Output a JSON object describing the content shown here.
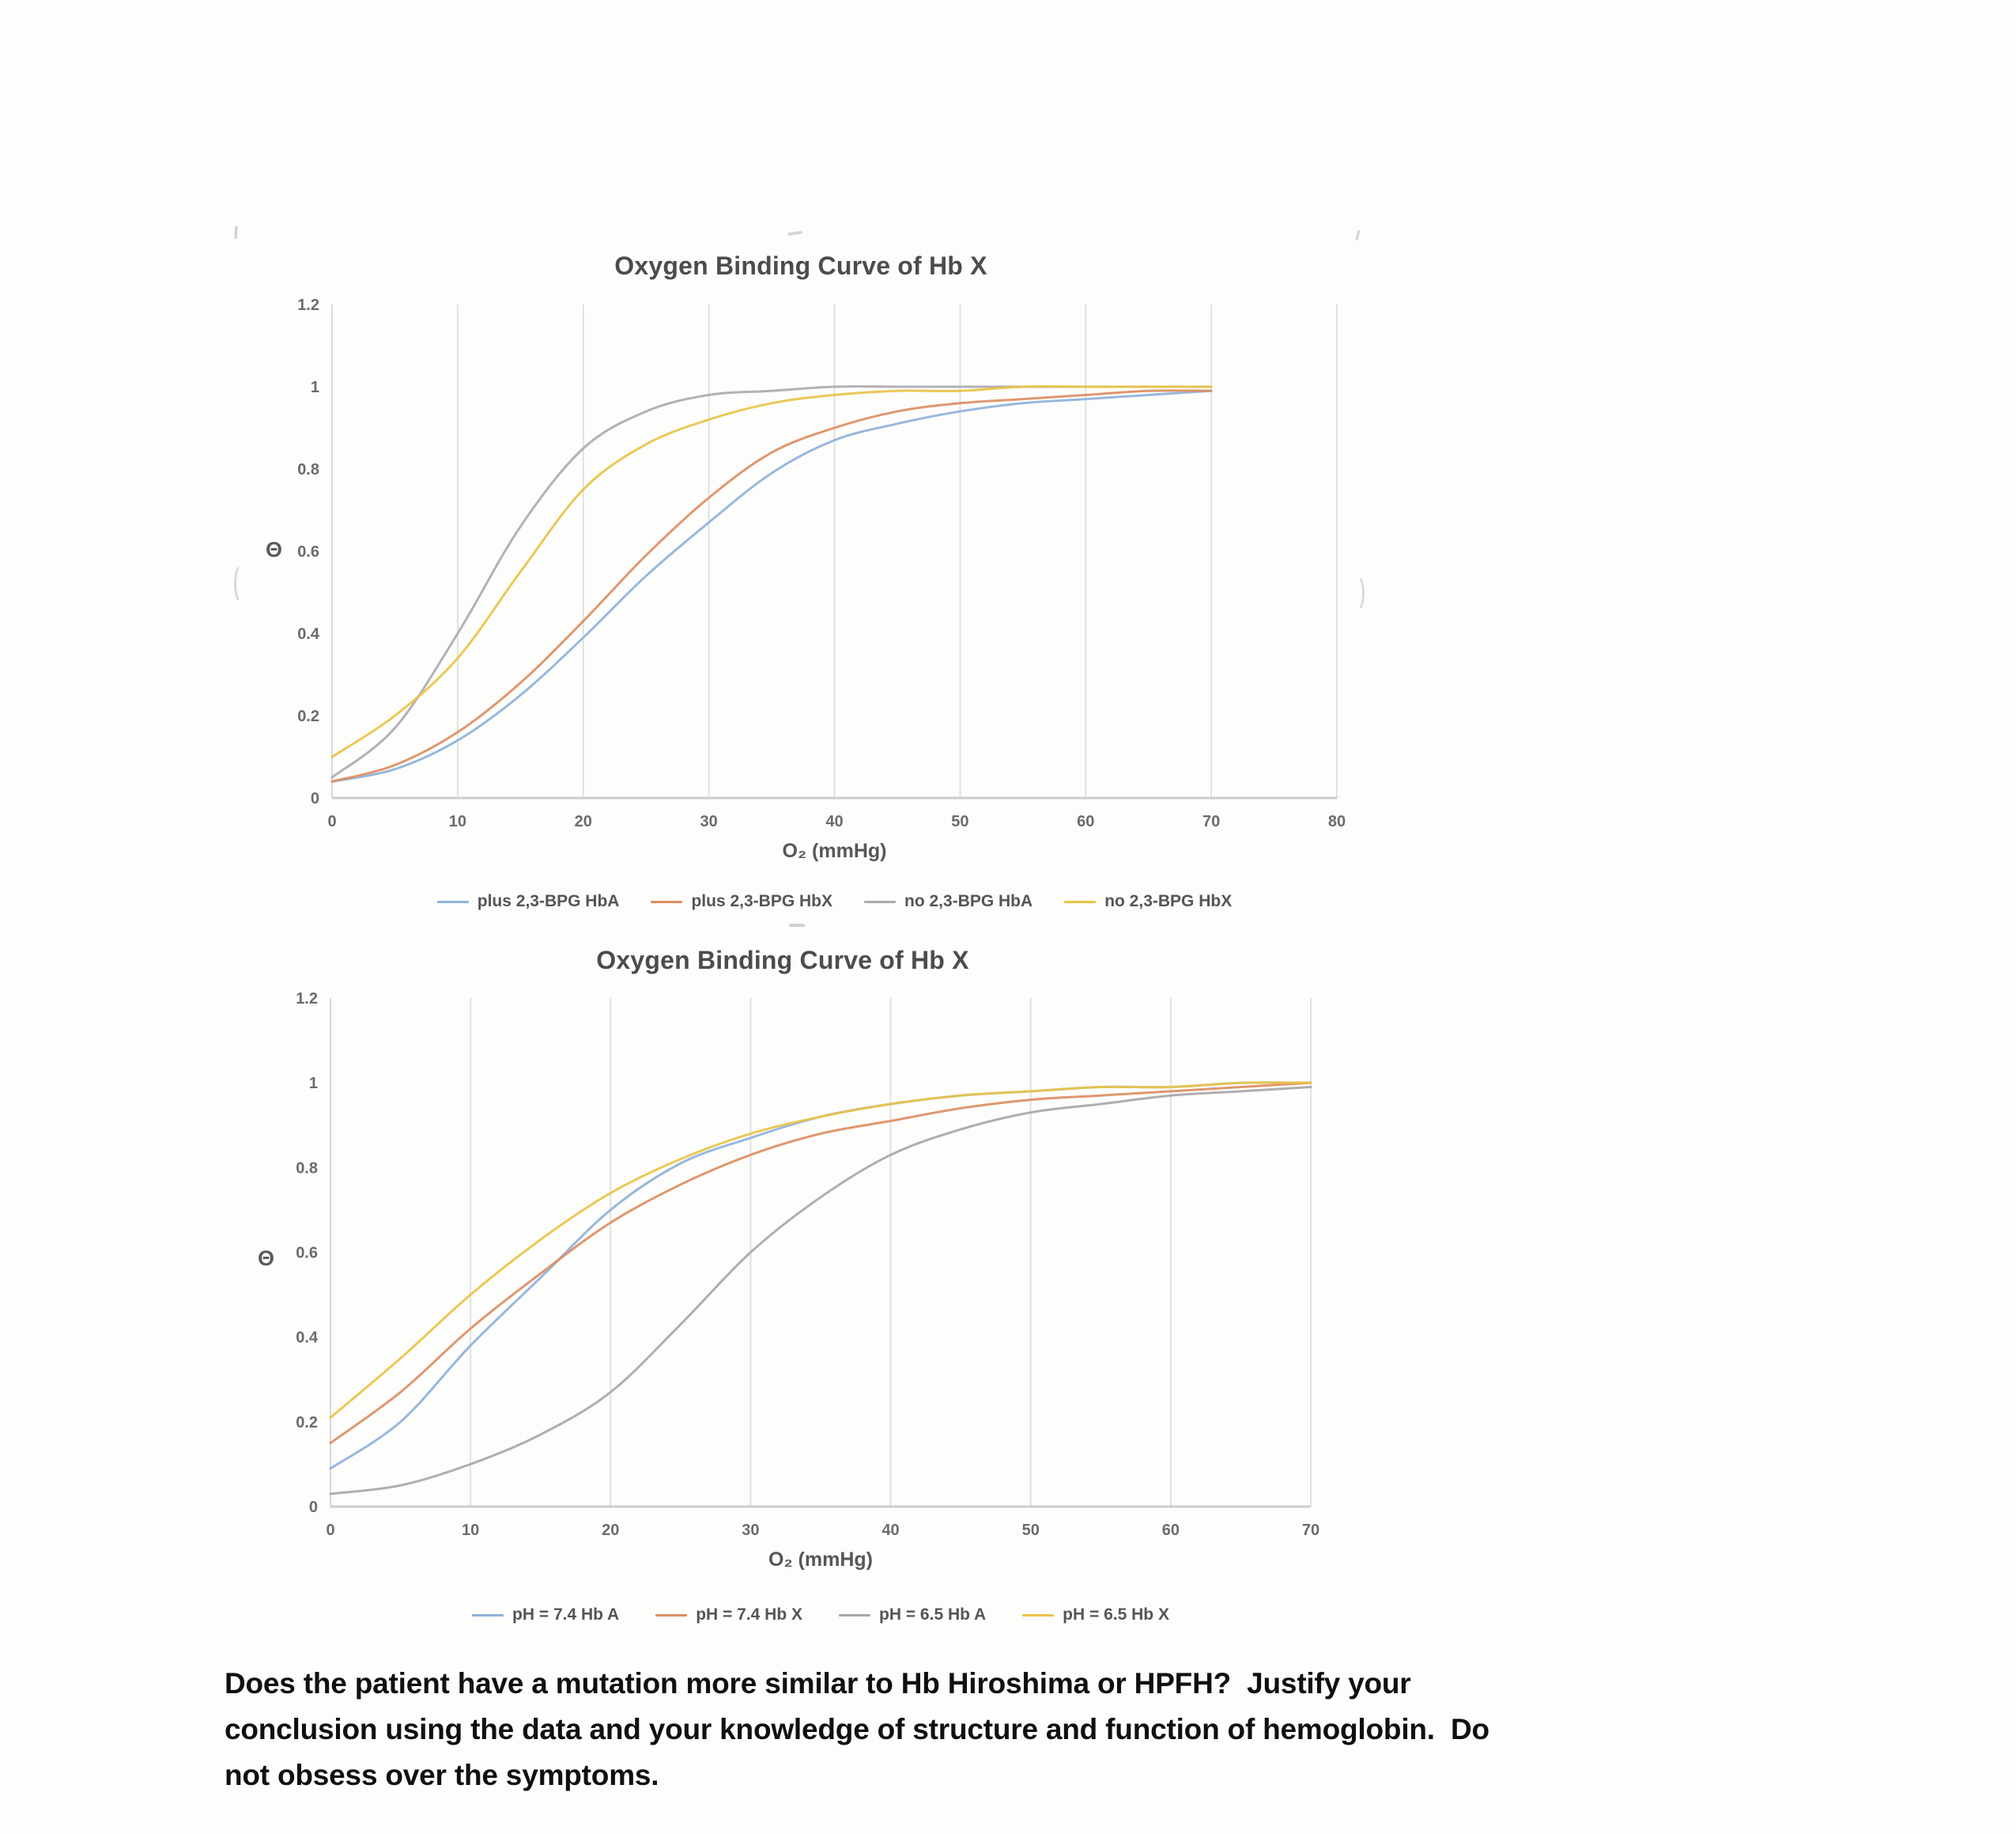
{
  "document": {
    "question": {
      "lines": [
        "Does the patient have a mutation more similar to Hb Hiroshima or HPFH?  Justify your",
        "conclusion using the data and your knowledge of structure and function of hemoglobin.  Do",
        "not obsess over the symptoms."
      ]
    }
  },
  "chart_data": [
    {
      "type": "line",
      "title": "Oxygen Binding Curve of Hb X",
      "xlabel": "O₂ (mmHg)",
      "ylabel": "Θ",
      "xlim": [
        0,
        80
      ],
      "ylim": [
        0,
        1.2
      ],
      "xticks": [
        0,
        10,
        20,
        30,
        40,
        50,
        60,
        70,
        80
      ],
      "yticks": [
        0,
        0.2,
        0.4,
        0.6,
        0.8,
        1,
        1.2
      ],
      "grid_x": [
        10,
        20,
        30,
        40,
        50,
        60,
        70,
        80
      ],
      "grid": "vertical-only",
      "legend_position": "bottom",
      "x": [
        0,
        5,
        10,
        15,
        20,
        25,
        30,
        35,
        40,
        45,
        50,
        55,
        60,
        65,
        70
      ],
      "series": [
        {
          "name": "plus 2,3-BPG HbA",
          "color": "#8FB2D9",
          "values": [
            0.04,
            0.07,
            0.14,
            0.25,
            0.39,
            0.54,
            0.67,
            0.79,
            0.87,
            0.91,
            0.94,
            0.96,
            0.97,
            0.98,
            0.99
          ]
        },
        {
          "name": "plus 2,3-BPG HbX",
          "color": "#DC8E62",
          "values": [
            0.04,
            0.08,
            0.16,
            0.28,
            0.43,
            0.59,
            0.73,
            0.84,
            0.9,
            0.94,
            0.96,
            0.97,
            0.98,
            0.99,
            0.99
          ]
        },
        {
          "name": "no 2,3-BPG HbA",
          "color": "#ACA9B0",
          "values": [
            0.05,
            0.17,
            0.4,
            0.66,
            0.85,
            0.94,
            0.98,
            0.99,
            1.0,
            1.0,
            1.0,
            1.0,
            1.0,
            1.0,
            1.0
          ]
        },
        {
          "name": "no 2,3-BPG HbX",
          "color": "#E9C347",
          "values": [
            0.1,
            0.2,
            0.34,
            0.55,
            0.75,
            0.86,
            0.92,
            0.96,
            0.98,
            0.99,
            0.99,
            1.0,
            1.0,
            1.0,
            1.0
          ]
        }
      ]
    },
    {
      "type": "line",
      "title": "Oxygen Binding Curve of Hb X",
      "xlabel": "O₂ (mmHg)",
      "ylabel": "Θ",
      "xlim": [
        0,
        70
      ],
      "ylim": [
        0,
        1.2
      ],
      "xticks": [
        0,
        10,
        20,
        30,
        40,
        50,
        60,
        70
      ],
      "yticks": [
        0,
        0.2,
        0.4,
        0.6,
        0.8,
        1,
        1.2
      ],
      "grid_x": [
        10,
        20,
        30,
        40,
        50,
        60,
        70
      ],
      "grid": "vertical-only",
      "legend_position": "bottom",
      "x": [
        0,
        5,
        10,
        15,
        20,
        25,
        30,
        35,
        40,
        45,
        50,
        55,
        60,
        65,
        70
      ],
      "series": [
        {
          "name": "pH = 7.4 Hb A",
          "color": "#8FB2D9",
          "values": [
            0.09,
            0.2,
            0.38,
            0.54,
            0.7,
            0.81,
            0.87,
            0.92,
            0.95,
            0.97,
            0.98,
            0.99,
            0.99,
            1.0,
            1.0
          ]
        },
        {
          "name": "pH = 7.4 Hb X",
          "color": "#DC8E62",
          "values": [
            0.15,
            0.27,
            0.42,
            0.55,
            0.67,
            0.76,
            0.83,
            0.88,
            0.91,
            0.94,
            0.96,
            0.97,
            0.98,
            0.99,
            1.0
          ]
        },
        {
          "name": "pH = 6.5 Hb A",
          "color": "#A9A6A9",
          "values": [
            0.03,
            0.05,
            0.1,
            0.17,
            0.27,
            0.43,
            0.6,
            0.73,
            0.83,
            0.89,
            0.93,
            0.95,
            0.97,
            0.98,
            0.99
          ]
        },
        {
          "name": "pH = 6.5 Hb X",
          "color": "#E9C347",
          "values": [
            0.21,
            0.35,
            0.5,
            0.63,
            0.74,
            0.82,
            0.88,
            0.92,
            0.95,
            0.97,
            0.98,
            0.99,
            0.99,
            1.0,
            1.0
          ]
        }
      ]
    }
  ]
}
